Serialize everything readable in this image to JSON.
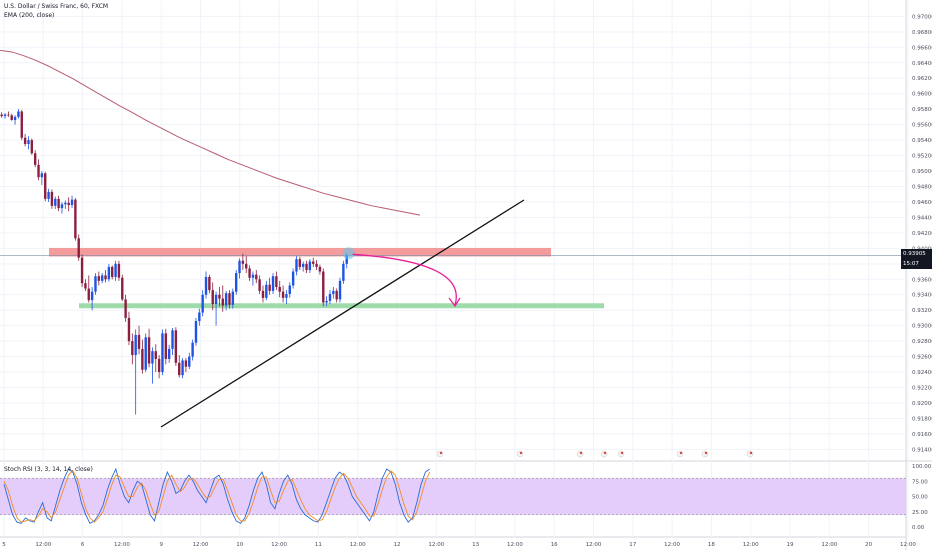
{
  "header": {
    "symbol_line": "U.S. Dollar / Swiss Franc, 60, FXCM",
    "indicator_line": "EMA (200, close)"
  },
  "price_tags": {
    "last_price": "0.93905",
    "countdown": "15:07"
  },
  "stoch_header": "Stoch RSI (3, 3, 14, 14, close)",
  "colors": {
    "up": "#1e53e5",
    "down": "#8b1f3e",
    "ema": "#b85c6e",
    "resistance_zone": "#f28b8b",
    "support_zone": "#8ed49b",
    "arrow": "#e91e9a",
    "highlight": "#5ec8ec",
    "stoch_band": "#e1c4fa",
    "stoch_k": "#2a6ad6",
    "stoch_d": "#f28c28"
  },
  "chart_data": [
    {
      "type": "candlestick",
      "title": "U.S. Dollar / Swiss Franc, 60, FXCM",
      "y_ticks": [
        "0.97000",
        "0.96800",
        "0.96600",
        "0.96400",
        "0.96200",
        "0.96000",
        "0.95800",
        "0.95600",
        "0.95400",
        "0.95200",
        "0.95000",
        "0.94800",
        "0.94600",
        "0.94400",
        "0.94200",
        "0.94000",
        "0.93800",
        "0.93600",
        "0.93400",
        "0.93200",
        "0.93000",
        "0.92800",
        "0.92600",
        "0.92400",
        "0.92200",
        "0.92000",
        "0.91800",
        "0.91600",
        "0.91400"
      ],
      "ylim": [
        0.9125,
        0.9716
      ],
      "x_ticks": [
        "5",
        "12:00",
        "6",
        "12:00",
        "9",
        "12:00",
        "10",
        "12:00",
        "11",
        "12:00",
        "12",
        "12:00",
        "13",
        "12:00",
        "16",
        "12:00",
        "17",
        "12:00",
        "18",
        "12:00",
        "19",
        "12:00",
        "20",
        "12:00"
      ],
      "candles": [
        {
          "o": 0.9573,
          "h": 0.9576,
          "l": 0.9569,
          "c": 0.9571
        },
        {
          "o": 0.9571,
          "h": 0.9575,
          "l": 0.9568,
          "c": 0.9573
        },
        {
          "o": 0.9573,
          "h": 0.9577,
          "l": 0.957,
          "c": 0.9572
        },
        {
          "o": 0.9572,
          "h": 0.9574,
          "l": 0.9565,
          "c": 0.9566
        },
        {
          "o": 0.9566,
          "h": 0.9572,
          "l": 0.956,
          "c": 0.957
        },
        {
          "o": 0.957,
          "h": 0.958,
          "l": 0.9568,
          "c": 0.9577
        },
        {
          "o": 0.9577,
          "h": 0.9579,
          "l": 0.954,
          "c": 0.9543
        },
        {
          "o": 0.9543,
          "h": 0.9548,
          "l": 0.9532,
          "c": 0.9535
        },
        {
          "o": 0.9535,
          "h": 0.9545,
          "l": 0.9528,
          "c": 0.954
        },
        {
          "o": 0.954,
          "h": 0.9542,
          "l": 0.9521,
          "c": 0.9523
        },
        {
          "o": 0.9523,
          "h": 0.9527,
          "l": 0.9505,
          "c": 0.9508
        },
        {
          "o": 0.9508,
          "h": 0.9515,
          "l": 0.9488,
          "c": 0.9492
        },
        {
          "o": 0.9492,
          "h": 0.95,
          "l": 0.9482,
          "c": 0.9497
        },
        {
          "o": 0.9497,
          "h": 0.9499,
          "l": 0.9461,
          "c": 0.9464
        },
        {
          "o": 0.9464,
          "h": 0.9477,
          "l": 0.946,
          "c": 0.9473
        },
        {
          "o": 0.9473,
          "h": 0.9476,
          "l": 0.9451,
          "c": 0.9455
        },
        {
          "o": 0.9455,
          "h": 0.9467,
          "l": 0.9451,
          "c": 0.9464
        },
        {
          "o": 0.9464,
          "h": 0.9468,
          "l": 0.9448,
          "c": 0.9452
        },
        {
          "o": 0.9452,
          "h": 0.946,
          "l": 0.9445,
          "c": 0.9457
        },
        {
          "o": 0.9457,
          "h": 0.9462,
          "l": 0.9451,
          "c": 0.9459
        },
        {
          "o": 0.9459,
          "h": 0.9466,
          "l": 0.9448,
          "c": 0.9456
        },
        {
          "o": 0.9456,
          "h": 0.9468,
          "l": 0.9452,
          "c": 0.9463
        },
        {
          "o": 0.9463,
          "h": 0.9465,
          "l": 0.941,
          "c": 0.9413
        },
        {
          "o": 0.9413,
          "h": 0.9418,
          "l": 0.9384,
          "c": 0.9388
        },
        {
          "o": 0.9388,
          "h": 0.9392,
          "l": 0.935,
          "c": 0.9355
        },
        {
          "o": 0.9355,
          "h": 0.936,
          "l": 0.9345,
          "c": 0.9348
        },
        {
          "o": 0.9348,
          "h": 0.9365,
          "l": 0.933,
          "c": 0.9333
        },
        {
          "o": 0.9333,
          "h": 0.935,
          "l": 0.932,
          "c": 0.9344
        },
        {
          "o": 0.9344,
          "h": 0.9368,
          "l": 0.934,
          "c": 0.9364
        },
        {
          "o": 0.9364,
          "h": 0.937,
          "l": 0.9352,
          "c": 0.9358
        },
        {
          "o": 0.9358,
          "h": 0.9368,
          "l": 0.9355,
          "c": 0.9365
        },
        {
          "o": 0.9365,
          "h": 0.9372,
          "l": 0.9356,
          "c": 0.936
        },
        {
          "o": 0.936,
          "h": 0.938,
          "l": 0.9357,
          "c": 0.9376
        },
        {
          "o": 0.9376,
          "h": 0.9378,
          "l": 0.936,
          "c": 0.9363
        },
        {
          "o": 0.9363,
          "h": 0.9384,
          "l": 0.9358,
          "c": 0.938
        },
        {
          "o": 0.938,
          "h": 0.9384,
          "l": 0.9358,
          "c": 0.9362
        },
        {
          "o": 0.9362,
          "h": 0.9366,
          "l": 0.9332,
          "c": 0.9334
        },
        {
          "o": 0.9334,
          "h": 0.934,
          "l": 0.9305,
          "c": 0.931
        },
        {
          "o": 0.931,
          "h": 0.9318,
          "l": 0.9275,
          "c": 0.928
        },
        {
          "o": 0.928,
          "h": 0.929,
          "l": 0.925,
          "c": 0.9262
        },
        {
          "o": 0.9262,
          "h": 0.9295,
          "l": 0.9185,
          "c": 0.9288
        },
        {
          "o": 0.9288,
          "h": 0.93,
          "l": 0.9263,
          "c": 0.927
        },
        {
          "o": 0.927,
          "h": 0.9282,
          "l": 0.9238,
          "c": 0.9243
        },
        {
          "o": 0.9243,
          "h": 0.929,
          "l": 0.924,
          "c": 0.9285
        },
        {
          "o": 0.9285,
          "h": 0.9296,
          "l": 0.9246,
          "c": 0.9251
        },
        {
          "o": 0.9251,
          "h": 0.9272,
          "l": 0.9225,
          "c": 0.9267
        },
        {
          "o": 0.9267,
          "h": 0.9276,
          "l": 0.924,
          "c": 0.9257
        },
        {
          "o": 0.9257,
          "h": 0.9262,
          "l": 0.9232,
          "c": 0.924
        },
        {
          "o": 0.924,
          "h": 0.9295,
          "l": 0.9236,
          "c": 0.929
        },
        {
          "o": 0.929,
          "h": 0.9296,
          "l": 0.925,
          "c": 0.9257
        },
        {
          "o": 0.9257,
          "h": 0.9275,
          "l": 0.9252,
          "c": 0.927
        },
        {
          "o": 0.927,
          "h": 0.9297,
          "l": 0.9262,
          "c": 0.9294
        },
        {
          "o": 0.9294,
          "h": 0.9298,
          "l": 0.9248,
          "c": 0.9252
        },
        {
          "o": 0.9252,
          "h": 0.9262,
          "l": 0.9233,
          "c": 0.9236
        },
        {
          "o": 0.9236,
          "h": 0.9258,
          "l": 0.9232,
          "c": 0.9255
        },
        {
          "o": 0.9255,
          "h": 0.9258,
          "l": 0.924,
          "c": 0.9247
        },
        {
          "o": 0.9247,
          "h": 0.9265,
          "l": 0.9244,
          "c": 0.926
        },
        {
          "o": 0.926,
          "h": 0.9282,
          "l": 0.9255,
          "c": 0.9278
        },
        {
          "o": 0.9278,
          "h": 0.931,
          "l": 0.9274,
          "c": 0.9306
        },
        {
          "o": 0.9306,
          "h": 0.9322,
          "l": 0.93,
          "c": 0.9317
        },
        {
          "o": 0.9317,
          "h": 0.9346,
          "l": 0.9312,
          "c": 0.934
        },
        {
          "o": 0.934,
          "h": 0.937,
          "l": 0.9335,
          "c": 0.9363
        },
        {
          "o": 0.9363,
          "h": 0.9366,
          "l": 0.9342,
          "c": 0.9346
        },
        {
          "o": 0.9346,
          "h": 0.9356,
          "l": 0.932,
          "c": 0.9328
        },
        {
          "o": 0.9328,
          "h": 0.9344,
          "l": 0.93,
          "c": 0.934
        },
        {
          "o": 0.934,
          "h": 0.935,
          "l": 0.9325,
          "c": 0.9335
        },
        {
          "o": 0.9335,
          "h": 0.9352,
          "l": 0.9318,
          "c": 0.9326
        },
        {
          "o": 0.9326,
          "h": 0.9345,
          "l": 0.932,
          "c": 0.9342
        },
        {
          "o": 0.9342,
          "h": 0.9346,
          "l": 0.9322,
          "c": 0.9327
        },
        {
          "o": 0.9327,
          "h": 0.9348,
          "l": 0.9322,
          "c": 0.9344
        },
        {
          "o": 0.9344,
          "h": 0.9372,
          "l": 0.934,
          "c": 0.9368
        },
        {
          "o": 0.9368,
          "h": 0.9387,
          "l": 0.9361,
          "c": 0.9384
        },
        {
          "o": 0.9384,
          "h": 0.9393,
          "l": 0.9372,
          "c": 0.938
        },
        {
          "o": 0.938,
          "h": 0.939,
          "l": 0.9368,
          "c": 0.9374
        },
        {
          "o": 0.9374,
          "h": 0.9378,
          "l": 0.9358,
          "c": 0.9362
        },
        {
          "o": 0.9362,
          "h": 0.937,
          "l": 0.9352,
          "c": 0.9366
        },
        {
          "o": 0.9366,
          "h": 0.9372,
          "l": 0.9355,
          "c": 0.936
        },
        {
          "o": 0.936,
          "h": 0.9365,
          "l": 0.9341,
          "c": 0.9345
        },
        {
          "o": 0.9345,
          "h": 0.9352,
          "l": 0.933,
          "c": 0.9336
        },
        {
          "o": 0.9336,
          "h": 0.9358,
          "l": 0.9333,
          "c": 0.9353
        },
        {
          "o": 0.9353,
          "h": 0.9362,
          "l": 0.934,
          "c": 0.9345
        },
        {
          "o": 0.9345,
          "h": 0.9368,
          "l": 0.9341,
          "c": 0.9364
        },
        {
          "o": 0.9364,
          "h": 0.937,
          "l": 0.9346,
          "c": 0.935
        },
        {
          "o": 0.935,
          "h": 0.9358,
          "l": 0.9337,
          "c": 0.9344
        },
        {
          "o": 0.9344,
          "h": 0.9352,
          "l": 0.933,
          "c": 0.9336
        },
        {
          "o": 0.9336,
          "h": 0.9346,
          "l": 0.9328,
          "c": 0.9341
        },
        {
          "o": 0.9341,
          "h": 0.9356,
          "l": 0.9336,
          "c": 0.9352
        },
        {
          "o": 0.9352,
          "h": 0.9374,
          "l": 0.9348,
          "c": 0.937
        },
        {
          "o": 0.937,
          "h": 0.939,
          "l": 0.9365,
          "c": 0.9386
        },
        {
          "o": 0.9386,
          "h": 0.9389,
          "l": 0.9372,
          "c": 0.9376
        },
        {
          "o": 0.9376,
          "h": 0.9383,
          "l": 0.937,
          "c": 0.938
        },
        {
          "o": 0.938,
          "h": 0.9384,
          "l": 0.9368,
          "c": 0.9372
        },
        {
          "o": 0.9372,
          "h": 0.9386,
          "l": 0.9368,
          "c": 0.9383
        },
        {
          "o": 0.9383,
          "h": 0.9388,
          "l": 0.9376,
          "c": 0.938
        },
        {
          "o": 0.938,
          "h": 0.9385,
          "l": 0.9372,
          "c": 0.9376
        },
        {
          "o": 0.9376,
          "h": 0.9379,
          "l": 0.9366,
          "c": 0.937
        },
        {
          "o": 0.937,
          "h": 0.9374,
          "l": 0.9325,
          "c": 0.933
        },
        {
          "o": 0.933,
          "h": 0.9338,
          "l": 0.9325,
          "c": 0.9332
        },
        {
          "o": 0.9332,
          "h": 0.9346,
          "l": 0.9328,
          "c": 0.9341
        },
        {
          "o": 0.9341,
          "h": 0.935,
          "l": 0.9335,
          "c": 0.9345
        },
        {
          "o": 0.9345,
          "h": 0.9348,
          "l": 0.933,
          "c": 0.9334
        },
        {
          "o": 0.9334,
          "h": 0.9362,
          "l": 0.933,
          "c": 0.9358
        },
        {
          "o": 0.9358,
          "h": 0.9384,
          "l": 0.9354,
          "c": 0.938
        },
        {
          "o": 0.938,
          "h": 0.9394,
          "l": 0.9374,
          "c": 0.9391
        }
      ],
      "ema_200": [
        0.9656,
        0.9654,
        0.9649,
        0.9643,
        0.9636,
        0.9628,
        0.962,
        0.9611,
        0.9602,
        0.9593,
        0.9584,
        0.9576,
        0.9567,
        0.9559,
        0.9551,
        0.9543,
        0.9536,
        0.9529,
        0.9522,
        0.9515,
        0.9509,
        0.9503,
        0.9497,
        0.9491,
        0.9486,
        0.9481,
        0.9476,
        0.9471,
        0.9467,
        0.9463,
        0.9459,
        0.9455,
        0.9452,
        0.9449,
        0.9446,
        0.9443
      ],
      "resistance_zone": [
        0.93895,
        0.94005
      ],
      "support_zone": [
        0.93245,
        0.9329
      ],
      "trendline": {
        "from_bar": 40,
        "from_price": 0.9181,
        "to_bar": 128,
        "to_price": 0.9469
      },
      "last_price_line": 0.93905
    },
    {
      "type": "line",
      "title": "Stoch RSI (3, 3, 14, 14, close)",
      "y_ticks": [
        "100.00",
        "75.00",
        "50.00",
        "25.00",
        "0.00"
      ],
      "ylim": [
        0,
        100
      ],
      "band": [
        20,
        80
      ],
      "series": [
        {
          "values": [
            70,
            45,
            20,
            8,
            6,
            15,
            10,
            8,
            25,
            40,
            15,
            10,
            35,
            60,
            80,
            95,
            90,
            70,
            40,
            20,
            6,
            10,
            20,
            35,
            60,
            80,
            95,
            70,
            50,
            40,
            60,
            75,
            70,
            45,
            20,
            10,
            40,
            70,
            90,
            75,
            55,
            60,
            75,
            85,
            75,
            60,
            50,
            40,
            60,
            80,
            85,
            70,
            45,
            25,
            10,
            6,
            15,
            35,
            60,
            80,
            90,
            70,
            40,
            30,
            55,
            75,
            85,
            70,
            45,
            30,
            20,
            15,
            10,
            8,
            20,
            40,
            60,
            80,
            90,
            85,
            70,
            50,
            40,
            30,
            20,
            10,
            25,
            55,
            80,
            95,
            90,
            70,
            40,
            20,
            8,
            15,
            40,
            70,
            90,
            95
          ]
        },
        {
          "values": [
            75,
            60,
            35,
            15,
            8,
            10,
            12,
            10,
            18,
            30,
            25,
            15,
            25,
            45,
            65,
            85,
            92,
            80,
            55,
            30,
            15,
            8,
            15,
            25,
            45,
            68,
            85,
            82,
            65,
            50,
            50,
            65,
            72,
            60,
            38,
            20,
            25,
            50,
            75,
            85,
            70,
            58,
            65,
            78,
            80,
            70,
            58,
            48,
            50,
            65,
            78,
            78,
            60,
            40,
            20,
            10,
            10,
            22,
            42,
            65,
            82,
            82,
            60,
            40,
            42,
            60,
            75,
            78,
            62,
            45,
            30,
            20,
            15,
            10,
            12,
            25,
            45,
            65,
            80,
            88,
            80,
            65,
            50,
            40,
            30,
            18,
            18,
            38,
            62,
            82,
            92,
            85,
            62,
            38,
            18,
            12,
            25,
            50,
            75,
            90
          ]
        }
      ]
    }
  ]
}
